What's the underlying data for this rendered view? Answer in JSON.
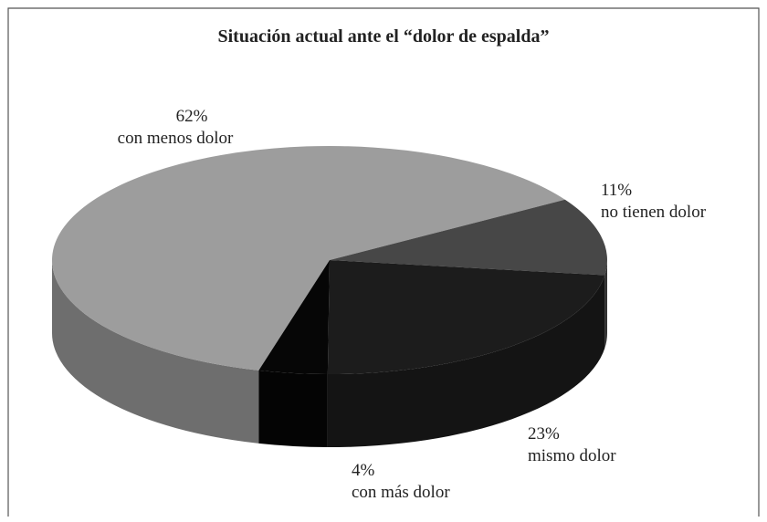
{
  "chart_data": {
    "type": "pie",
    "title": "Situación actual ante el “dolor de espalda”",
    "categories": [
      "con menos dolor",
      "no tienen dolor",
      "mismo dolor",
      "con más dolor"
    ],
    "values": [
      62,
      11,
      23,
      4
    ],
    "value_labels": [
      "62%",
      "11%",
      "23%",
      "4%"
    ],
    "colors": [
      "#9d9d9d",
      "#474747",
      "#1c1c1c",
      "#060606"
    ]
  }
}
